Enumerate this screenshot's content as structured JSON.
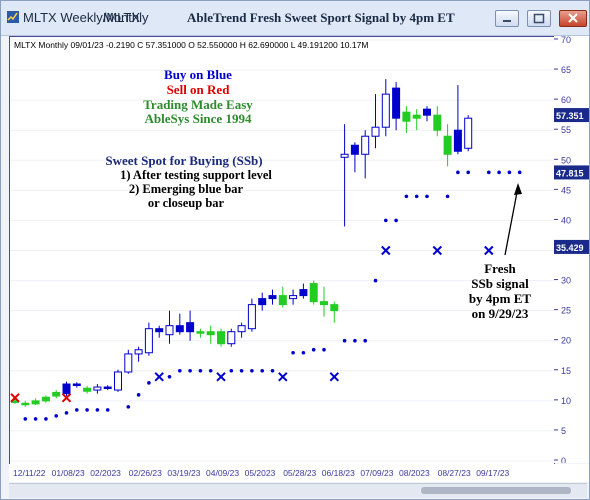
{
  "window": {
    "tabs": [
      "MLTX Weekly/MLTX",
      "Monthly"
    ],
    "title": "AbleTrend Fresh Sweet Sport Signal by 4pm ET"
  },
  "header_line": "MLTX  Monthly 09/01/23 -0.2190 C 57.351000 O 52.550000 H 62.690000 L 49.191200 10.17M",
  "legend_text": {
    "line1": "Buy on Blue",
    "line2": "Sell on Red",
    "line3": "Trading Made Easy",
    "line4": "AbleSys Since 1994"
  },
  "annotation": {
    "title": "Sweet Spot for Buying (SSb)",
    "line1": "1) After testing support level",
    "line2": "2) Emerging blue bar",
    "line3": "or closeup bar"
  },
  "callout": {
    "line1": "Fresh",
    "line2": "SSb signal",
    "line3": "by 4pm ET",
    "line4": "on 9/29/23"
  },
  "colors": {
    "blue": "#0000cc",
    "green": "#22cc22",
    "red": "#dd0000",
    "trading_text": "#2e8b2e",
    "axis_text": "#3a3aa0",
    "badge": "#1a2a8a"
  },
  "chart_data": {
    "type": "candlestick",
    "y_axis": {
      "ticks": [
        0,
        5,
        10,
        15,
        20,
        25,
        30,
        35,
        40,
        45,
        50,
        55,
        60,
        65,
        70
      ],
      "ylim": [
        0,
        70
      ]
    },
    "x_axis": {
      "labels": [
        "12/11/22",
        "01/08/23",
        "02/2023",
        "02/26/23",
        "03/19/23",
        "04/09/23",
        "05/2023",
        "05/28/23",
        "06/18/23",
        "07/09/23",
        "08/2023",
        "08/27/23",
        "09/17/23"
      ]
    },
    "price_badges": [
      "57.351",
      "47.815",
      "35.429"
    ],
    "candles": [
      {
        "i": 0,
        "o": 10,
        "h": 10.6,
        "l": 9.5,
        "c": 9.8,
        "color": "green"
      },
      {
        "i": 1,
        "o": 9.6,
        "h": 10,
        "l": 9,
        "c": 9.4,
        "color": "green"
      },
      {
        "i": 2,
        "o": 9.5,
        "h": 10.4,
        "l": 9.3,
        "c": 10,
        "color": "green"
      },
      {
        "i": 3,
        "o": 10,
        "h": 10.9,
        "l": 9.7,
        "c": 10.6,
        "color": "green"
      },
      {
        "i": 4,
        "o": 10.8,
        "h": 11.8,
        "l": 10.4,
        "c": 11.4,
        "color": "green"
      },
      {
        "i": 5,
        "o": 11.2,
        "h": 13.2,
        "l": 10.8,
        "c": 12.8,
        "color": "blue"
      },
      {
        "i": 6,
        "o": 12.6,
        "h": 13.1,
        "l": 12.2,
        "c": 12.8,
        "color": "blue"
      },
      {
        "i": 7,
        "o": 11.6,
        "h": 12.5,
        "l": 11.2,
        "c": 12.1,
        "color": "green"
      },
      {
        "i": 8,
        "o": 11.8,
        "h": 12.8,
        "l": 11.2,
        "c": 12.3,
        "color": "hollow"
      },
      {
        "i": 9,
        "o": 12.1,
        "h": 12.6,
        "l": 11.8,
        "c": 12.3,
        "color": "blue"
      },
      {
        "i": 10,
        "o": 11.8,
        "h": 15.2,
        "l": 11.5,
        "c": 14.8,
        "color": "hollow"
      },
      {
        "i": 11,
        "o": 14.8,
        "h": 18.5,
        "l": 14.5,
        "c": 17.8,
        "color": "hollow"
      },
      {
        "i": 12,
        "o": 17.8,
        "h": 19,
        "l": 16.5,
        "c": 18.5,
        "color": "hollow"
      },
      {
        "i": 13,
        "o": 18,
        "h": 23,
        "l": 17.5,
        "c": 22,
        "color": "hollow"
      },
      {
        "i": 14,
        "o": 21.5,
        "h": 22.5,
        "l": 20.5,
        "c": 22,
        "color": "blue"
      },
      {
        "i": 15,
        "o": 21,
        "h": 25,
        "l": 19.5,
        "c": 22.5,
        "color": "hollow"
      },
      {
        "i": 16,
        "o": 22.5,
        "h": 24.5,
        "l": 21,
        "c": 21.5,
        "color": "blue"
      },
      {
        "i": 17,
        "o": 21.5,
        "h": 25,
        "l": 20,
        "c": 23,
        "color": "blue"
      },
      {
        "i": 18,
        "o": 21.5,
        "h": 22,
        "l": 20.5,
        "c": 21.5,
        "color": "green"
      },
      {
        "i": 19,
        "o": 21,
        "h": 22.5,
        "l": 19.5,
        "c": 21.5,
        "color": "green"
      },
      {
        "i": 20,
        "o": 21.5,
        "h": 22,
        "l": 19,
        "c": 19.5,
        "color": "green"
      },
      {
        "i": 21,
        "o": 19.5,
        "h": 22,
        "l": 19,
        "c": 21.5,
        "color": "hollow"
      },
      {
        "i": 22,
        "o": 21.5,
        "h": 23,
        "l": 20.5,
        "c": 22.5,
        "color": "hollow"
      },
      {
        "i": 23,
        "o": 22,
        "h": 27,
        "l": 21.5,
        "c": 26,
        "color": "hollow"
      },
      {
        "i": 24,
        "o": 26,
        "h": 28,
        "l": 25,
        "c": 27,
        "color": "blue"
      },
      {
        "i": 25,
        "o": 27,
        "h": 28.5,
        "l": 26,
        "c": 27.5,
        "color": "blue"
      },
      {
        "i": 26,
        "o": 27.5,
        "h": 29,
        "l": 25.5,
        "c": 26,
        "color": "green"
      },
      {
        "i": 27,
        "o": 27,
        "h": 28.5,
        "l": 26,
        "c": 27.5,
        "color": "hollow"
      },
      {
        "i": 28,
        "o": 27.5,
        "h": 29.5,
        "l": 27,
        "c": 28.5,
        "color": "blue"
      },
      {
        "i": 29,
        "o": 29.5,
        "h": 30,
        "l": 26,
        "c": 26.5,
        "color": "green"
      },
      {
        "i": 30,
        "o": 26.5,
        "h": 29,
        "l": 24,
        "c": 26,
        "color": "green"
      },
      {
        "i": 31,
        "o": 25,
        "h": 26.5,
        "l": 23,
        "c": 26,
        "color": "green"
      },
      {
        "i": 32,
        "o": 51,
        "h": 56,
        "l": 39,
        "c": 50.5,
        "color": "hollow"
      },
      {
        "i": 33,
        "o": 51,
        "h": 53,
        "l": 48,
        "c": 52.5,
        "color": "blue"
      },
      {
        "i": 34,
        "o": 51,
        "h": 55,
        "l": 47,
        "c": 54,
        "color": "hollow"
      },
      {
        "i": 35,
        "o": 54,
        "h": 61,
        "l": 52,
        "c": 55.5,
        "color": "hollow"
      },
      {
        "i": 36,
        "o": 55.5,
        "h": 63.5,
        "l": 54,
        "c": 61,
        "color": "hollow"
      },
      {
        "i": 37,
        "o": 62,
        "h": 63,
        "l": 55,
        "c": 57,
        "color": "blue"
      },
      {
        "i": 38,
        "o": 58,
        "h": 59,
        "l": 54.5,
        "c": 56.5,
        "color": "green"
      },
      {
        "i": 39,
        "o": 57,
        "h": 58.5,
        "l": 55,
        "c": 57.5,
        "color": "green"
      },
      {
        "i": 40,
        "o": 58.5,
        "h": 59,
        "l": 56.5,
        "c": 57.5,
        "color": "blue"
      },
      {
        "i": 41,
        "o": 57.5,
        "h": 59,
        "l": 54,
        "c": 55,
        "color": "green"
      },
      {
        "i": 42,
        "o": 54,
        "h": 56,
        "l": 49,
        "c": 51,
        "color": "green"
      },
      {
        "i": 43,
        "o": 51.5,
        "h": 62.5,
        "l": 51,
        "c": 55,
        "color": "blue"
      },
      {
        "i": 44,
        "o": 52,
        "h": 57.5,
        "l": 51.5,
        "c": 57,
        "color": "hollow"
      }
    ],
    "support_dots": [
      {
        "i": 1,
        "v": 7
      },
      {
        "i": 2,
        "v": 7
      },
      {
        "i": 3,
        "v": 7
      },
      {
        "i": 4,
        "v": 7.5
      },
      {
        "i": 5,
        "v": 8
      },
      {
        "i": 6,
        "v": 8.5
      },
      {
        "i": 7,
        "v": 8.5
      },
      {
        "i": 8,
        "v": 8.5
      },
      {
        "i": 9,
        "v": 8.5
      },
      {
        "i": 11,
        "v": 9
      },
      {
        "i": 12,
        "v": 11
      },
      {
        "i": 13,
        "v": 13
      },
      {
        "i": 15,
        "v": 14
      },
      {
        "i": 16,
        "v": 15
      },
      {
        "i": 17,
        "v": 15
      },
      {
        "i": 18,
        "v": 15
      },
      {
        "i": 19,
        "v": 15
      },
      {
        "i": 21,
        "v": 15
      },
      {
        "i": 22,
        "v": 15
      },
      {
        "i": 23,
        "v": 15
      },
      {
        "i": 24,
        "v": 15
      },
      {
        "i": 25,
        "v": 15
      },
      {
        "i": 27,
        "v": 18
      },
      {
        "i": 28,
        "v": 18
      },
      {
        "i": 29,
        "v": 18.5
      },
      {
        "i": 30,
        "v": 18.5
      },
      {
        "i": 32,
        "v": 20
      },
      {
        "i": 33,
        "v": 20
      },
      {
        "i": 34,
        "v": 20
      },
      {
        "i": 35,
        "v": 30
      },
      {
        "i": 36,
        "v": 40
      },
      {
        "i": 37,
        "v": 40
      },
      {
        "i": 38,
        "v": 44
      },
      {
        "i": 39,
        "v": 44
      },
      {
        "i": 40,
        "v": 44
      },
      {
        "i": 42,
        "v": 44
      },
      {
        "i": 43,
        "v": 48
      },
      {
        "i": 44,
        "v": 48
      },
      {
        "i": 46,
        "v": 48
      },
      {
        "i": 47,
        "v": 48
      },
      {
        "i": 48,
        "v": 48
      },
      {
        "i": 49,
        "v": 48
      }
    ],
    "x_markers": [
      {
        "i": 0,
        "v": 10.5,
        "color": "red"
      },
      {
        "i": 5,
        "v": 10.5,
        "color": "red"
      },
      {
        "i": 14,
        "v": 14,
        "color": "blue"
      },
      {
        "i": 20,
        "v": 14,
        "color": "blue"
      },
      {
        "i": 26,
        "v": 14,
        "color": "blue"
      },
      {
        "i": 31,
        "v": 14,
        "color": "blue"
      },
      {
        "i": 36,
        "v": 35,
        "color": "blue"
      },
      {
        "i": 41,
        "v": 35,
        "color": "blue"
      },
      {
        "i": 46,
        "v": 35,
        "color": "blue"
      }
    ]
  }
}
